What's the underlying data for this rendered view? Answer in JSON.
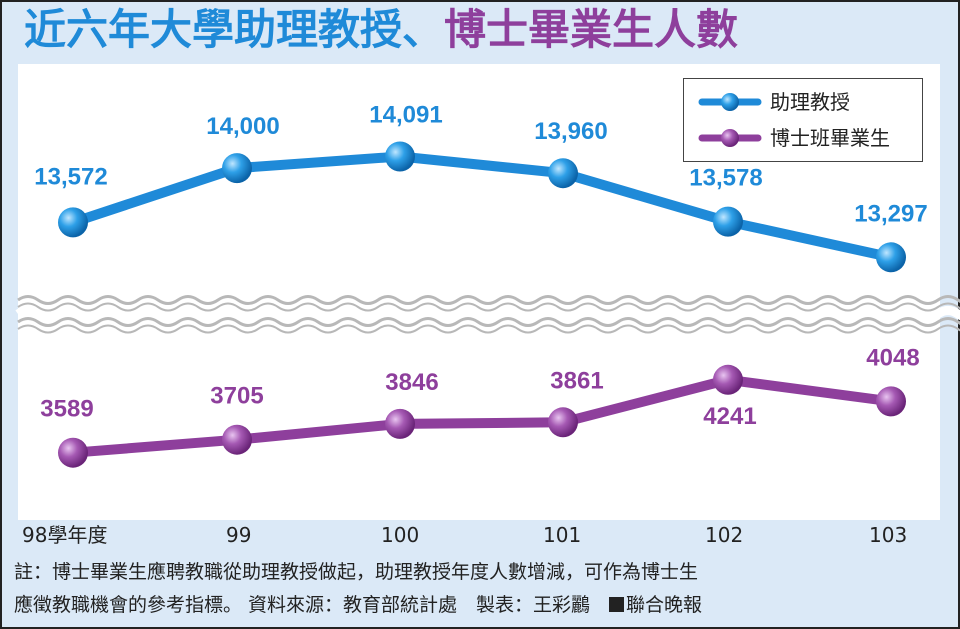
{
  "title": {
    "part1": "近六年大學助理教授、",
    "part2": "博士畢業生人數"
  },
  "chart_data": {
    "type": "line",
    "categories": [
      "98學年度",
      "99",
      "100",
      "101",
      "102",
      "103"
    ],
    "series": [
      {
        "name": "助理教授",
        "values": [
          13572,
          14000,
          14091,
          13960,
          13578,
          13297
        ],
        "labels": [
          "13,572",
          "14,000",
          "14,091",
          "13,960",
          "13,578",
          "13,297"
        ],
        "color": "#1f8ad8",
        "ylim": [
          13000,
          14300
        ]
      },
      {
        "name": "博士班畢業生",
        "values": [
          3589,
          3705,
          3846,
          3861,
          4241,
          4048
        ],
        "labels": [
          "3589",
          "3705",
          "3846",
          "3861",
          "4241",
          "4048"
        ],
        "color": "#8e3f9c",
        "ylim": [
          3300,
          4400
        ]
      }
    ],
    "axis_break": true,
    "legend_position": "top-right",
    "grid": false
  },
  "legend": {
    "items": [
      "助理教授",
      "博士班畢業生"
    ]
  },
  "footnote": {
    "line1": "註：博士畢業生應聘教職從助理教授做起，助理教授年度人數增減，可作為博士生",
    "line2_text": "應徵教職機會的參考指標。 資料來源：教育部統計處　製表：王彩鸝　",
    "line2_source": "聯合晚報"
  }
}
